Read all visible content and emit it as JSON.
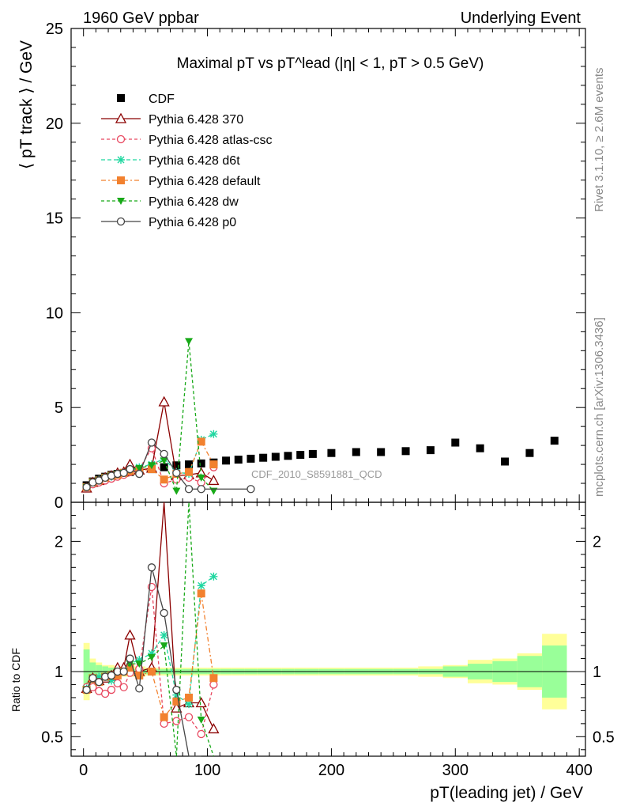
{
  "header": {
    "left": "1960 GeV ppbar",
    "right": "Underlying Event"
  },
  "side_labels": {
    "rivet": "Rivet 3.1.10, ≥ 2.6M events",
    "mcplots": "mcplots.cern.ch [arXiv:1306.3436]"
  },
  "analysis_tag": "CDF_2010_S8591881_QCD",
  "chart_data": {
    "type": "scatter",
    "title": "Maximal pT vs pT^lead (|η| < 1, pT > 0.5 GeV)",
    "xlabel": "pT(leading jet) / GeV",
    "ylabel": "⟨ pT track ⟩ / GeV",
    "ratio_ylabel": "Ratio to CDF",
    "xlim": [
      -10,
      405
    ],
    "ylim": [
      0,
      25
    ],
    "ratio_ylim": [
      0.35,
      2.3
    ],
    "x_ticks": [
      0,
      100,
      200,
      300,
      400
    ],
    "y_ticks": [
      0,
      5,
      10,
      15,
      20,
      25
    ],
    "ratio_ticks": [
      0.5,
      1,
      2
    ],
    "legend_position": "top-left",
    "series": [
      {
        "name": "CDF",
        "color": "#000000",
        "marker": "square-filled",
        "x": [
          2.5,
          7.5,
          12.5,
          17.5,
          22.5,
          27.5,
          32.5,
          37.5,
          45,
          55,
          65,
          75,
          85,
          95,
          105,
          115,
          125,
          135,
          145,
          155,
          165,
          175,
          185,
          200,
          220,
          240,
          260,
          280,
          300,
          320,
          340,
          360,
          380
        ],
        "y": [
          0.9,
          1.1,
          1.25,
          1.35,
          1.45,
          1.5,
          1.55,
          1.6,
          1.7,
          1.75,
          1.85,
          1.95,
          2.0,
          2.05,
          2.1,
          2.2,
          2.25,
          2.3,
          2.35,
          2.4,
          2.45,
          2.5,
          2.55,
          2.6,
          2.65,
          2.65,
          2.7,
          2.75,
          3.15,
          2.85,
          2.15,
          2.6,
          3.25
        ]
      },
      {
        "name": "Pythia 6.428 370",
        "color": "#8b0000",
        "marker": "triangle-open",
        "x": [
          2.5,
          7.5,
          12.5,
          17.5,
          22.5,
          27.5,
          32.5,
          37.5,
          45,
          55,
          65,
          75,
          85,
          95,
          105
        ],
        "y": [
          0.75,
          1.05,
          1.15,
          1.3,
          1.4,
          1.55,
          1.6,
          2.0,
          1.7,
          1.8,
          5.3,
          1.4,
          1.45,
          1.55,
          1.15
        ]
      },
      {
        "name": "Pythia 6.428 atlas-csc",
        "color": "#e8475f",
        "marker": "circle-open",
        "x": [
          2.5,
          7.5,
          12.5,
          17.5,
          22.5,
          27.5,
          32.5,
          37.5,
          45,
          55,
          65,
          75,
          85,
          95,
          105
        ],
        "y": [
          0.8,
          0.95,
          1.05,
          1.15,
          1.25,
          1.35,
          1.45,
          1.6,
          1.75,
          2.85,
          1.0,
          1.2,
          1.3,
          1.05,
          1.85
        ]
      },
      {
        "name": "Pythia 6.428 d6t",
        "color": "#1fd7a0",
        "marker": "star",
        "x": [
          2.5,
          7.5,
          12.5,
          17.5,
          22.5,
          27.5,
          32.5,
          37.5,
          45,
          55,
          65,
          75,
          85,
          95,
          105
        ],
        "y": [
          0.8,
          1.05,
          1.2,
          1.3,
          1.35,
          1.5,
          1.55,
          1.7,
          1.85,
          2.0,
          2.3,
          1.6,
          1.5,
          3.3,
          3.6
        ]
      },
      {
        "name": "Pythia 6.428 default",
        "color": "#f2812f",
        "marker": "square-filled",
        "x": [
          2.5,
          7.5,
          12.5,
          17.5,
          22.5,
          27.5,
          32.5,
          37.5,
          45,
          55,
          65,
          75,
          85,
          95,
          105
        ],
        "y": [
          0.8,
          1.05,
          1.15,
          1.3,
          1.4,
          1.45,
          1.55,
          1.65,
          1.65,
          1.75,
          1.2,
          1.5,
          1.6,
          3.2,
          2.0
        ]
      },
      {
        "name": "Pythia 6.428 dw",
        "color": "#18a918",
        "marker": "triangle-down-filled",
        "x": [
          2.5,
          7.5,
          12.5,
          17.5,
          22.5,
          27.5,
          32.5,
          37.5,
          45,
          55,
          65,
          75,
          85,
          95,
          105
        ],
        "y": [
          0.8,
          1.05,
          1.15,
          1.3,
          1.4,
          1.5,
          1.55,
          1.7,
          1.8,
          1.95,
          2.2,
          0.6,
          8.5,
          1.3,
          0.6
        ]
      },
      {
        "name": "Pythia 6.428 p0",
        "color": "#444444",
        "marker": "circle-open",
        "x": [
          2.5,
          7.5,
          12.5,
          17.5,
          22.5,
          27.5,
          32.5,
          37.5,
          45,
          55,
          65,
          75,
          85,
          95,
          135
        ],
        "y": [
          0.8,
          1.05,
          1.15,
          1.3,
          1.4,
          1.5,
          1.55,
          1.75,
          1.5,
          3.15,
          2.55,
          1.55,
          0.7,
          0.7,
          0.7
        ]
      }
    ],
    "ratio_series": [
      {
        "name": "Pythia 6.428 370",
        "x": [
          2.5,
          7.5,
          12.5,
          17.5,
          22.5,
          27.5,
          32.5,
          37.5,
          45,
          55,
          65,
          75,
          85,
          95,
          105
        ],
        "y": [
          0.87,
          0.95,
          0.93,
          0.95,
          0.97,
          1.03,
          1.03,
          1.28,
          1.0,
          1.03,
          2.9,
          0.72,
          0.76,
          0.76,
          0.56
        ]
      },
      {
        "name": "Pythia 6.428 atlas-csc",
        "x": [
          2.5,
          7.5,
          12.5,
          17.5,
          22.5,
          27.5,
          32.5,
          37.5,
          45,
          55,
          65,
          75,
          85,
          95,
          105
        ],
        "y": [
          0.88,
          0.88,
          0.85,
          0.83,
          0.86,
          0.91,
          0.88,
          0.99,
          1.02,
          1.65,
          0.6,
          0.62,
          0.65,
          0.52,
          0.9
        ]
      },
      {
        "name": "Pythia 6.428 d6t",
        "x": [
          2.5,
          7.5,
          12.5,
          17.5,
          22.5,
          27.5,
          32.5,
          37.5,
          45,
          55,
          65,
          75,
          85,
          95,
          105
        ],
        "y": [
          0.87,
          0.95,
          0.96,
          0.96,
          0.93,
          1.0,
          1.0,
          1.06,
          1.09,
          1.14,
          1.28,
          0.82,
          0.75,
          1.66,
          1.73
        ]
      },
      {
        "name": "Pythia 6.428 default",
        "x": [
          2.5,
          7.5,
          12.5,
          17.5,
          22.5,
          27.5,
          32.5,
          37.5,
          45,
          55,
          65,
          75,
          85,
          95,
          105
        ],
        "y": [
          0.86,
          0.95,
          0.92,
          0.96,
          0.97,
          0.97,
          1.0,
          1.03,
          0.97,
          1.0,
          0.65,
          0.77,
          0.8,
          1.6,
          0.95
        ]
      },
      {
        "name": "Pythia 6.428 dw",
        "x": [
          2.5,
          7.5,
          12.5,
          17.5,
          22.5,
          27.5,
          32.5,
          37.5,
          45,
          55,
          65,
          75,
          85,
          95,
          105
        ],
        "y": [
          0.86,
          0.95,
          0.92,
          0.96,
          0.97,
          1.0,
          1.0,
          1.06,
          1.06,
          1.11,
          1.2,
          0.3,
          4.25,
          0.63,
          0.3
        ]
      },
      {
        "name": "Pythia 6.428 p0",
        "x": [
          2.5,
          7.5,
          12.5,
          17.5,
          22.5,
          27.5,
          32.5,
          37.5,
          45,
          55,
          65,
          75,
          85,
          95
        ],
        "y": [
          0.86,
          0.95,
          0.92,
          0.96,
          0.97,
          1.0,
          1.0,
          1.1,
          0.87,
          1.8,
          1.45,
          0.86,
          0.3,
          0.3
        ]
      }
    ],
    "cdf_uncertainty_band": {
      "x_edges": [
        0,
        5,
        10,
        15,
        20,
        25,
        30,
        35,
        40,
        50,
        60,
        70,
        80,
        90,
        100,
        110,
        120,
        130,
        140,
        150,
        160,
        170,
        180,
        190,
        210,
        230,
        250,
        270,
        290,
        310,
        330,
        350,
        370,
        390
      ],
      "stat": [
        0.17,
        0.07,
        0.05,
        0.04,
        0.03,
        0.03,
        0.03,
        0.02,
        0.02,
        0.02,
        0.02,
        0.02,
        0.02,
        0.02,
        0.02,
        0.02,
        0.02,
        0.02,
        0.02,
        0.02,
        0.02,
        0.02,
        0.02,
        0.02,
        0.02,
        0.02,
        0.02,
        0.02,
        0.04,
        0.06,
        0.08,
        0.12,
        0.2
      ],
      "total": [
        0.22,
        0.1,
        0.07,
        0.05,
        0.05,
        0.04,
        0.04,
        0.04,
        0.04,
        0.03,
        0.03,
        0.03,
        0.03,
        0.03,
        0.03,
        0.03,
        0.03,
        0.03,
        0.03,
        0.03,
        0.03,
        0.03,
        0.03,
        0.03,
        0.03,
        0.03,
        0.03,
        0.04,
        0.05,
        0.09,
        0.1,
        0.14,
        0.29
      ]
    }
  }
}
